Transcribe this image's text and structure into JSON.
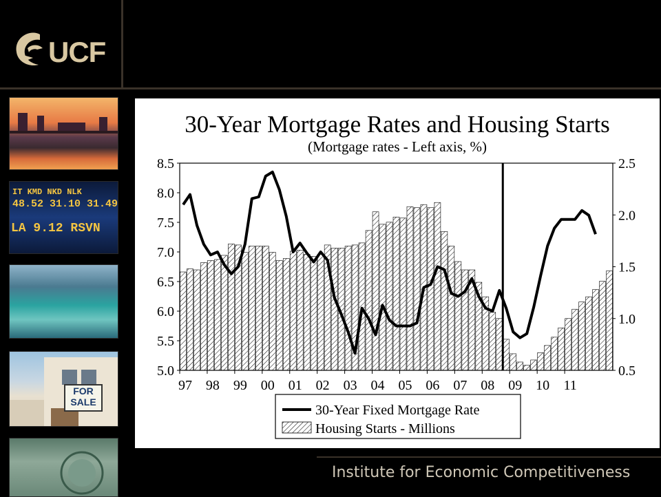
{
  "header": {
    "logo_text": "UCF"
  },
  "sidebar": {
    "ticker_line1": "IT  KMD  NKD  NLK",
    "ticker_line2": "48.52  31.10  31.49",
    "ticker_line3": "LA  9.12  RSVN",
    "for_sale_line1": "FOR",
    "for_sale_line2": "SALE"
  },
  "footer": {
    "text": "Institute for Economic Competitiveness"
  },
  "colors": {
    "background": "#000000",
    "accent": "#d9c8a2",
    "panel": "#ffffff"
  },
  "chart_data": {
    "type": "bar",
    "title": "30-Year Mortgage Rates and Housing Starts",
    "subtitle": "(Mortgage rates - Left axis, %)",
    "x_labels": [
      "97",
      "98",
      "99",
      "00",
      "01",
      "02",
      "03",
      "04",
      "05",
      "06",
      "07",
      "08",
      "09",
      "10",
      "11"
    ],
    "left_axis": {
      "ticks": [
        "5.0",
        "5.5",
        "6.0",
        "6.5",
        "7.0",
        "7.5",
        "8.0",
        "8.5"
      ],
      "ylim": [
        5.0,
        8.5
      ]
    },
    "right_axis": {
      "ticks": [
        "0.5",
        "1.0",
        "1.5",
        "2.0",
        "2.5"
      ],
      "ylim": [
        0.5,
        2.5
      ]
    },
    "recession_marker_x": 2008.75,
    "legend": [
      "30-Year Fixed Mortgage Rate",
      "Housing Starts - Millions"
    ],
    "x_start": 1997,
    "housing_starts": [
      1.45,
      1.48,
      1.47,
      1.54,
      1.56,
      1.57,
      1.61,
      1.72,
      1.71,
      1.64,
      1.7,
      1.7,
      1.7,
      1.64,
      1.56,
      1.58,
      1.65,
      1.66,
      1.62,
      1.6,
      1.62,
      1.71,
      1.68,
      1.68,
      1.7,
      1.71,
      1.73,
      1.85,
      2.03,
      1.91,
      1.93,
      1.98,
      1.97,
      2.08,
      2.07,
      2.1,
      2.07,
      2.12,
      1.84,
      1.7,
      1.55,
      1.47,
      1.47,
      1.35,
      1.21,
      1.06,
      1.0,
      0.8,
      0.66,
      0.58,
      0.55,
      0.6,
      0.67,
      0.74,
      0.82,
      0.91,
      1.0,
      1.09,
      1.16,
      1.21,
      1.28,
      1.36,
      1.46
    ],
    "mortgage_rate": [
      7.8,
      7.97,
      7.45,
      7.13,
      6.95,
      7.0,
      6.78,
      6.63,
      6.75,
      7.13,
      7.9,
      7.93,
      8.28,
      8.35,
      8.05,
      7.6,
      7.0,
      7.15,
      6.98,
      6.83,
      7.0,
      6.86,
      6.23,
      5.95,
      5.65,
      5.29,
      6.05,
      5.87,
      5.6,
      6.1,
      5.85,
      5.75,
      5.75,
      5.75,
      5.8,
      6.4,
      6.45,
      6.75,
      6.7,
      6.3,
      6.25,
      6.33,
      6.55,
      6.25,
      6.05,
      6.0,
      6.35,
      6.05,
      5.65,
      5.55,
      5.62,
      6.07,
      6.6,
      7.1,
      7.4,
      7.55,
      7.55,
      7.55,
      7.7,
      7.62,
      7.3
    ]
  }
}
